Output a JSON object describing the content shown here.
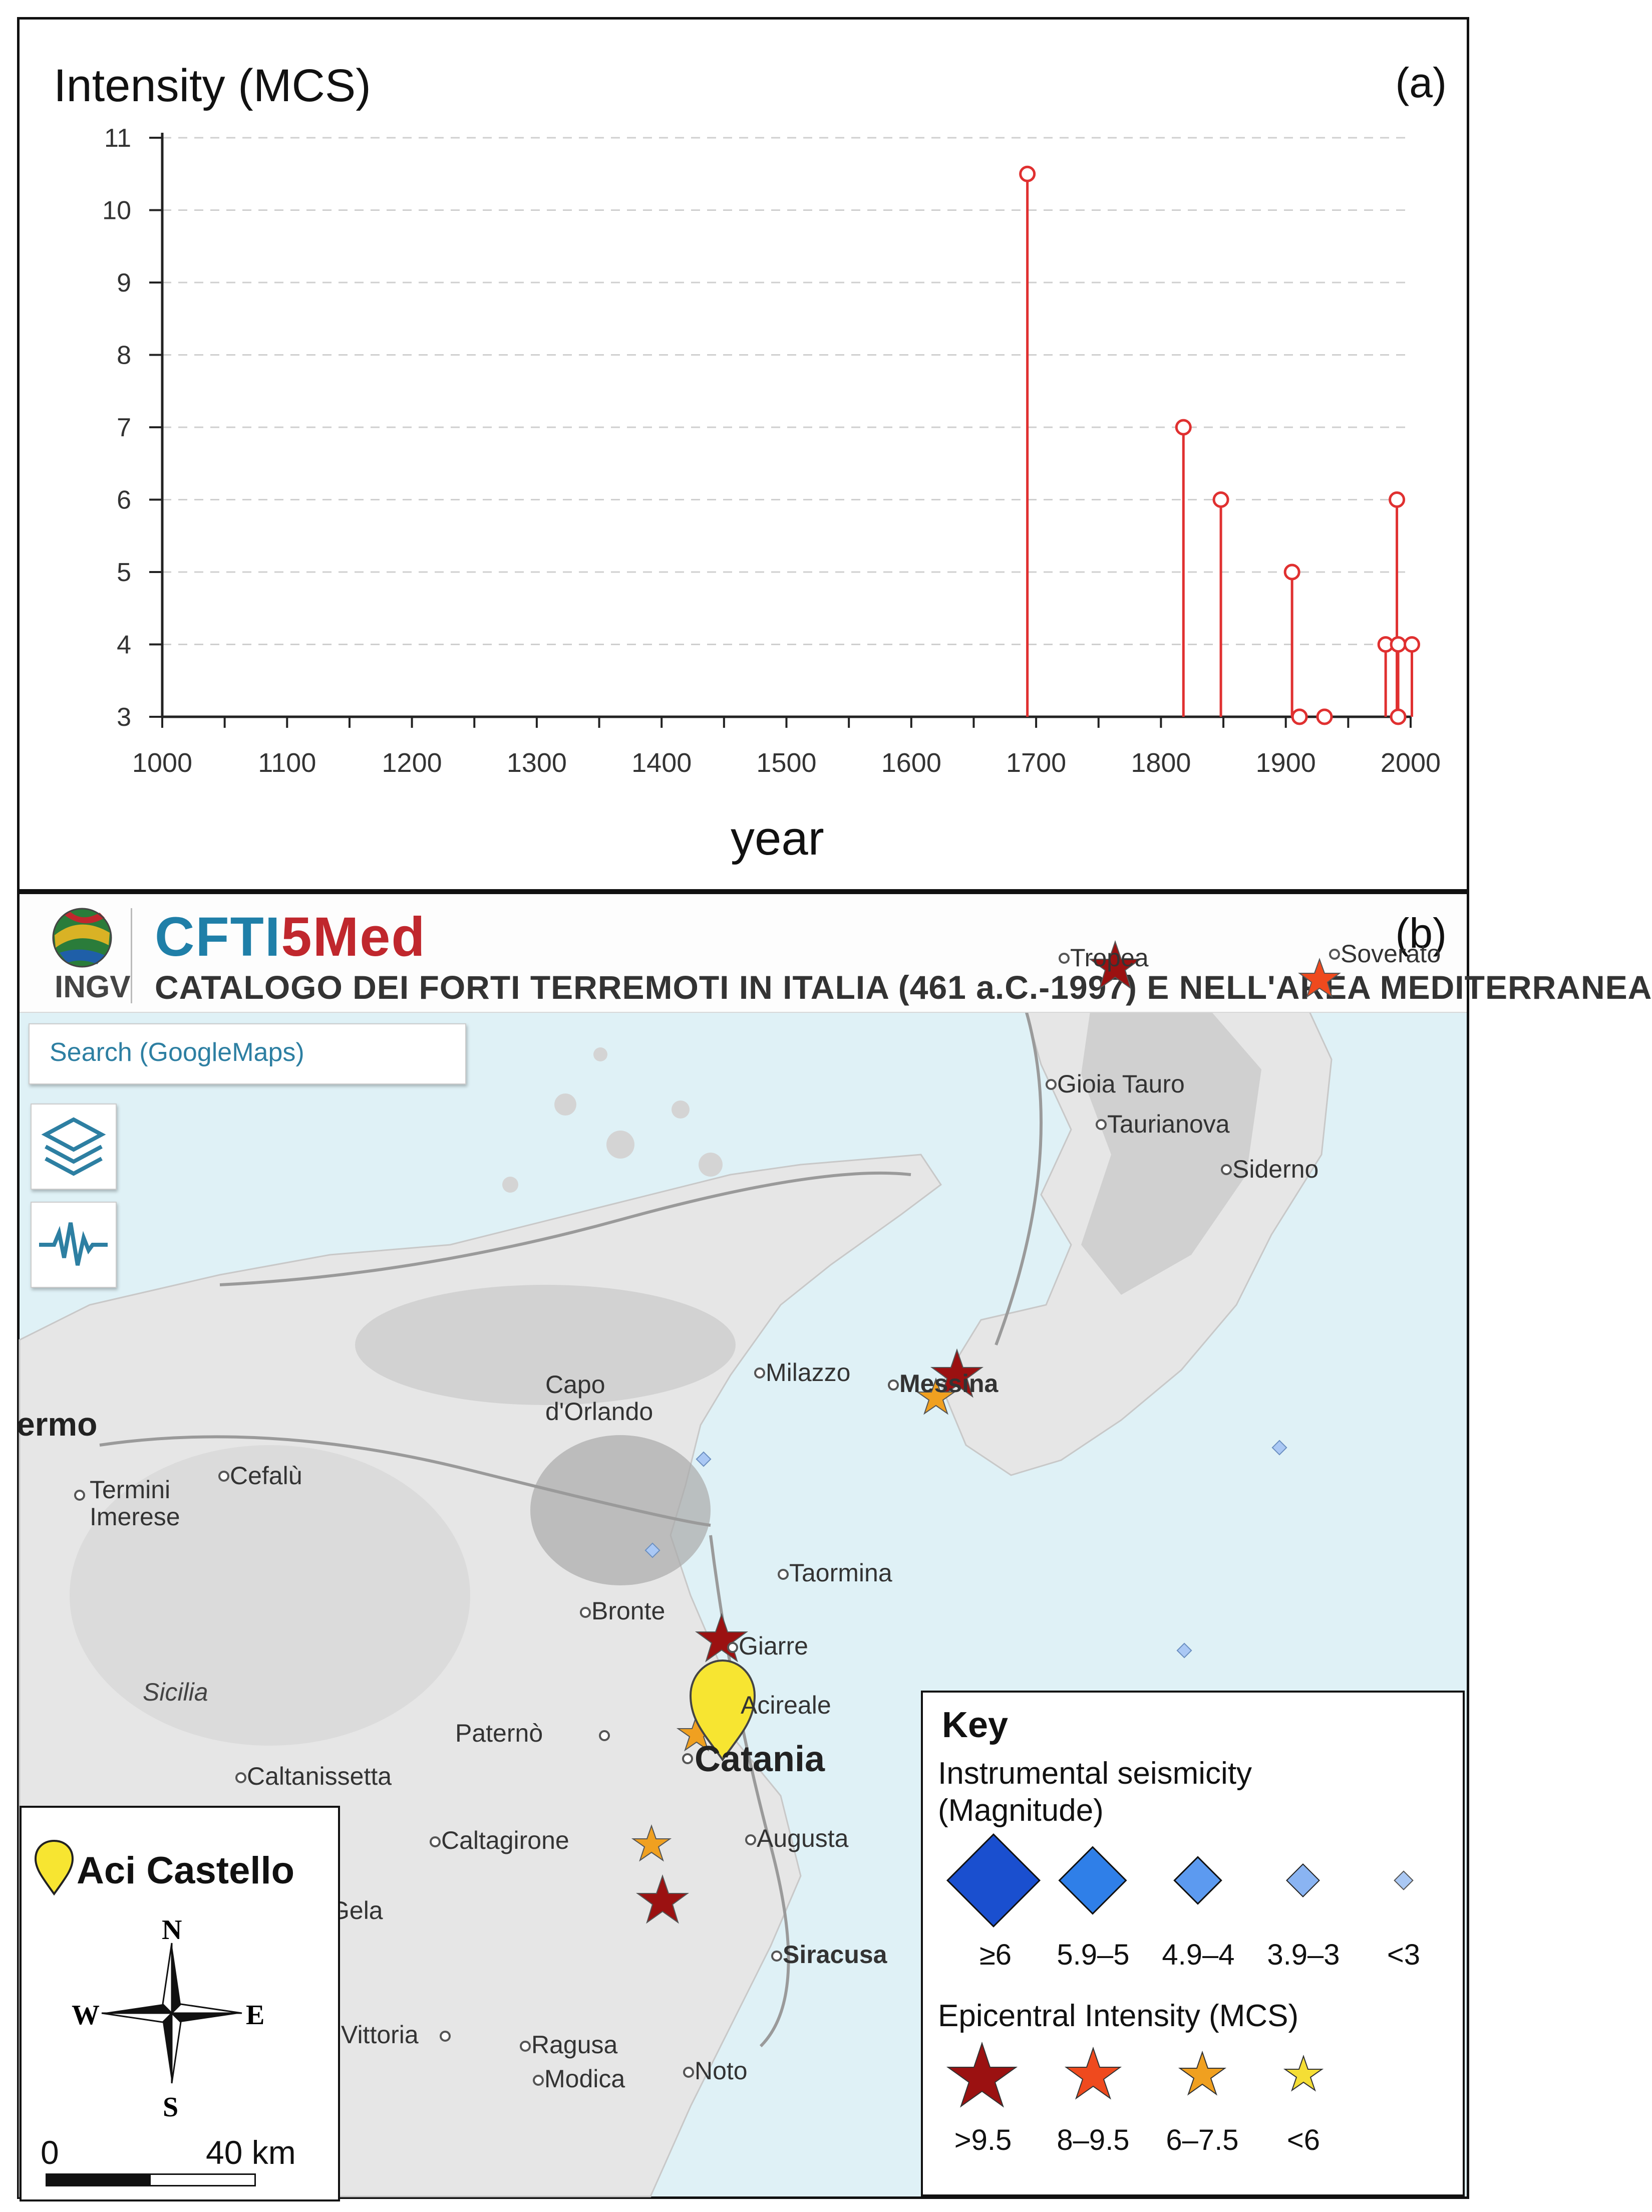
{
  "panel_a": {
    "title": "Intensity (MCS)",
    "letter": "(a)",
    "xlabel": "year"
  },
  "chart_data": {
    "type": "stem",
    "title": "Intensity (MCS)",
    "xlabel": "year",
    "ylabel": "Intensity (MCS)",
    "xlim": [
      1000,
      2000
    ],
    "ylim": [
      3,
      11
    ],
    "xticks": [
      "1000",
      "1100",
      "1200",
      "1300",
      "1400",
      "1500",
      "1600",
      "1700",
      "1800",
      "1900",
      "2000"
    ],
    "yticks": [
      "3",
      "4",
      "5",
      "6",
      "7",
      "8",
      "9",
      "10",
      "11"
    ],
    "grid": "horizontal dashed",
    "color": "#e03030",
    "points": [
      {
        "x": 1693,
        "y": 10.5
      },
      {
        "x": 1818,
        "y": 7
      },
      {
        "x": 1848,
        "y": 6
      },
      {
        "x": 1905,
        "y": 5
      },
      {
        "x": 1911,
        "y": 3
      },
      {
        "x": 1931,
        "y": 3
      },
      {
        "x": 1980,
        "y": 4
      },
      {
        "x": 1989,
        "y": 6
      },
      {
        "x": 1990,
        "y": 4
      },
      {
        "x": 1990,
        "y": 3
      },
      {
        "x": 2001,
        "y": 4
      }
    ]
  },
  "panel_b": {
    "letter": "(b)",
    "logo_text": "INGV",
    "brand_a": "CFTI",
    "brand_5": "5",
    "brand_b": "Med",
    "subtitle": "CATALOGO DEI FORTI TERREMOTI IN ITALIA (461 a.C.-1997) E NELL'AREA MEDITERRANEA",
    "search_label": "Search (GoogleMaps)",
    "places": {
      "tropea": "Tropea",
      "soverato": "Soverato",
      "gioia_tauro": "Gioia Tauro",
      "taurianova": "Taurianova",
      "siderno": "Siderno",
      "milazzo": "Milazzo",
      "messina": "Messina",
      "capo": "Capo",
      "dorlando": "d'Orlando",
      "palermo": "ermo",
      "termini": "Termini",
      "imerese": "Imerese",
      "cefalu": "Cefalù",
      "taormina": "Taormina",
      "bronte": "Bronte",
      "giarre": "Giarre",
      "acireale": "Acireale",
      "sicilia": "Sicilia",
      "paterno": "Paternò",
      "catania": "Catania",
      "caltanissetta": "Caltanissetta",
      "caltagirone": "Caltagirone",
      "augusta": "Augusta",
      "gela": "Gela",
      "siracusa": "Siracusa",
      "vittoria": "Vittoria",
      "ragusa": "Ragusa",
      "modica": "Modica",
      "noto": "Noto"
    },
    "key": {
      "title": "Key",
      "instrumental": "Instrumental seismicity",
      "magnitude": "(Magnitude)",
      "mag_labels": [
        "≥6",
        "5.9–5",
        "4.9–4",
        "3.9–3",
        "<3"
      ],
      "epicentral": "Epicentral Intensity (MCS)",
      "int_labels": [
        ">9.5",
        "8–9.5",
        "6–7.5",
        "<6"
      ],
      "diamond_colors": [
        "#1a4fcf",
        "#2f7fe8",
        "#5c9af0",
        "#8ab4f2",
        "#aac8f4"
      ],
      "star_colors": [
        "#9b1111",
        "#ef4a1e",
        "#f0a020",
        "#f5de35"
      ]
    },
    "location": {
      "name": "Aci Castello",
      "north": "N",
      "south": "S",
      "east": "E",
      "west": "W",
      "scale_start": "0",
      "scale_end": "40 km",
      "marker_color": "#f7e531"
    }
  }
}
